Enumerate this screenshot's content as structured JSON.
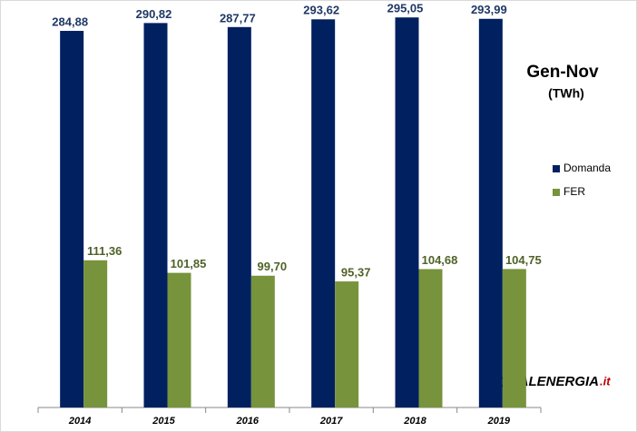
{
  "chart_data": {
    "type": "bar",
    "title": "Gen-Nov",
    "subtitle": "(TWh)",
    "categories": [
      "2014",
      "2015",
      "2016",
      "2017",
      "2018",
      "2019"
    ],
    "series": [
      {
        "name": "Domanda",
        "color": "#002060",
        "label_color": "#1f3864",
        "values": [
          284.88,
          290.82,
          287.77,
          293.62,
          295.05,
          293.99
        ],
        "value_labels": [
          "284,88",
          "290,82",
          "287,77",
          "293,62",
          "295,05",
          "293,99"
        ]
      },
      {
        "name": "FER",
        "color": "#77933c",
        "label_color": "#4f6228",
        "values": [
          111.36,
          101.85,
          99.7,
          95.37,
          104.68,
          104.75
        ],
        "value_labels": [
          "111,36",
          "101,85",
          "99,70",
          "95,37",
          "104,68",
          "104,75"
        ]
      }
    ],
    "ylim": [
      0,
      300
    ],
    "grid": false,
    "legend": "right",
    "logo": {
      "main": "QUALENERGIA",
      "suffix": ".it"
    }
  }
}
